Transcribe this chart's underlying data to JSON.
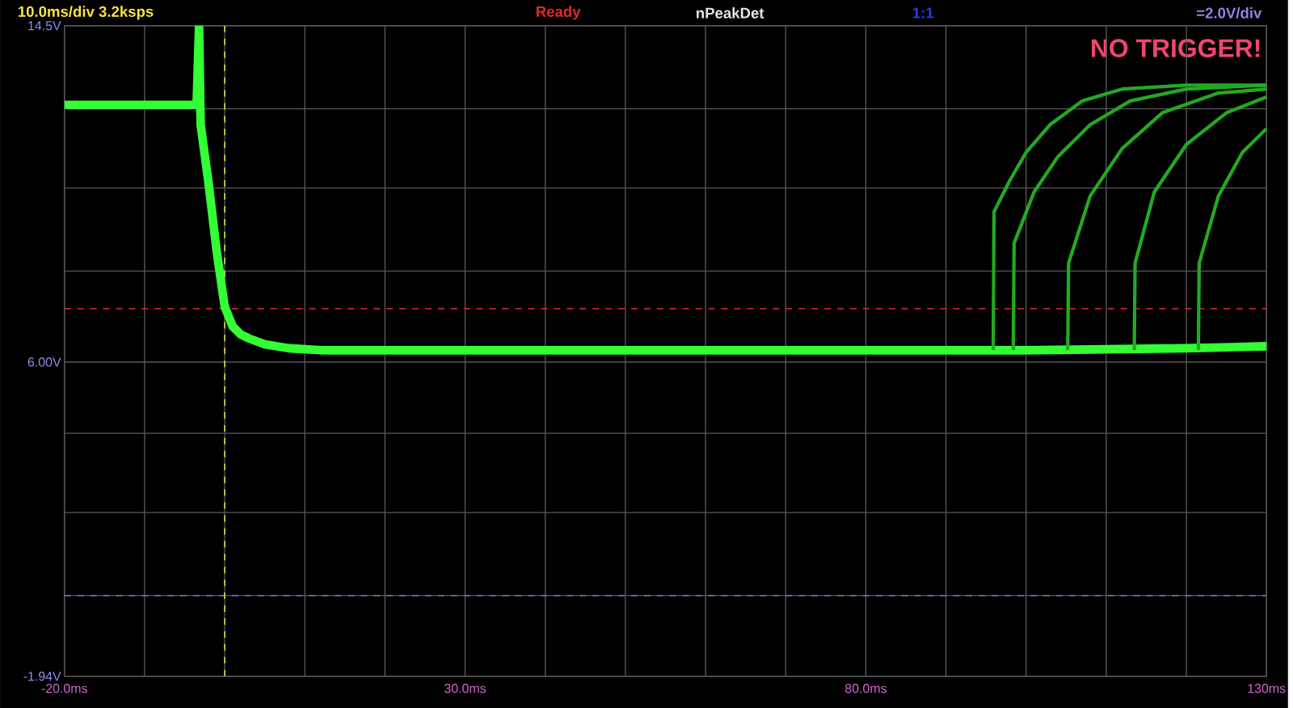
{
  "chart_data": {
    "type": "line",
    "annotations": [
      "10.0ms/div  3.2ksps",
      "Ready",
      "nPeakDet",
      "1:1",
      "=2.0V/div",
      "NO TRIGGER!"
    ],
    "xlim": [
      -20,
      130
    ],
    "xticks": [
      {
        "value": -20,
        "label": "-20.0ms"
      },
      {
        "value": -10,
        "label": null
      },
      {
        "value": 0,
        "label": null
      },
      {
        "value": 10,
        "label": null
      },
      {
        "value": 20,
        "label": null
      },
      {
        "value": 30,
        "label": "30.0ms"
      },
      {
        "value": 40,
        "label": null
      },
      {
        "value": 50,
        "label": null
      },
      {
        "value": 60,
        "label": null
      },
      {
        "value": 70,
        "label": null
      },
      {
        "value": 80,
        "label": "80.0ms"
      },
      {
        "value": 90,
        "label": null
      },
      {
        "value": 100,
        "label": null
      },
      {
        "value": 110,
        "label": null
      },
      {
        "value": 120,
        "label": null
      },
      {
        "value": 130,
        "label": "130ms"
      }
    ],
    "ylim": [
      -1.94,
      14.5
    ],
    "yticks": [
      {
        "value": -1.94,
        "label": "-1.94V"
      },
      {
        "value": 0.1,
        "label": null
      },
      {
        "value": 2.2,
        "label": null
      },
      {
        "value": 4.2,
        "label": null
      },
      {
        "value": 6.0,
        "label": "6.00V"
      },
      {
        "value": 8.3,
        "label": null
      },
      {
        "value": 10.4,
        "label": null
      },
      {
        "value": 12.4,
        "label": null
      },
      {
        "value": 14.5,
        "label": "14.5V"
      }
    ],
    "grid": true,
    "marker": "none",
    "line_style": "solid",
    "ref_lines": [
      {
        "axis": "y",
        "value": 7.35,
        "color": "#cc2222",
        "line_style": "dashed"
      },
      {
        "axis": "y",
        "value": 0.1,
        "color": "#6666cc",
        "line_style": "dashed"
      },
      {
        "axis": "x",
        "value": 0,
        "color": "#dddd44",
        "line_style": "dashed"
      }
    ],
    "series": [
      {
        "color": "#33ff33",
        "x": [
          -20,
          -15,
          -10,
          -5,
          -3.5,
          -3.2,
          -3.0,
          -2.0,
          -1.0,
          0,
          1,
          2,
          3,
          5,
          8,
          12,
          20,
          40,
          60,
          80,
          100,
          120,
          130
        ],
        "values": [
          12.5,
          12.5,
          12.5,
          12.5,
          12.5,
          14.5,
          12.0,
          10.5,
          8.8,
          7.4,
          6.9,
          6.7,
          6.6,
          6.45,
          6.35,
          6.3,
          6.3,
          6.3,
          6.3,
          6.3,
          6.3,
          6.35,
          6.4
        ]
      },
      {
        "color": "#22aa22",
        "x": [
          95.9,
          96.0,
          98,
          100,
          103,
          107,
          112,
          120,
          130
        ],
        "values": [
          6.3,
          9.8,
          10.6,
          11.3,
          12.0,
          12.6,
          12.9,
          13.0,
          13.0
        ]
      },
      {
        "color": "#22aa22",
        "x": [
          98.4,
          98.5,
          101,
          104,
          108,
          113,
          120,
          130
        ],
        "values": [
          6.3,
          9.0,
          10.3,
          11.2,
          12.0,
          12.6,
          12.9,
          13.0
        ]
      },
      {
        "color": "#22aa22",
        "x": [
          105.2,
          105.3,
          108,
          112,
          117,
          124,
          130
        ],
        "values": [
          6.3,
          8.5,
          10.2,
          11.4,
          12.3,
          12.8,
          12.9
        ]
      },
      {
        "color": "#22aa22",
        "x": [
          113.5,
          113.6,
          116,
          120,
          125,
          130
        ],
        "values": [
          6.3,
          8.5,
          10.3,
          11.5,
          12.3,
          12.7
        ]
      },
      {
        "color": "#22aa22",
        "x": [
          121.5,
          121.6,
          124,
          127,
          130
        ],
        "values": [
          6.3,
          8.5,
          10.2,
          11.3,
          11.9
        ]
      }
    ]
  }
}
